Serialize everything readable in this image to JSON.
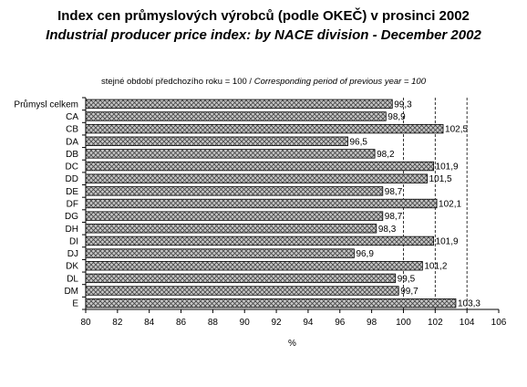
{
  "header": {
    "title_cz": "Index cen průmyslových výrobců (podle OKEČ) v prosinci 2002",
    "title_en": "Industrial producer price index: by NACE division - December 2002"
  },
  "note": {
    "base_cz": "stejné období předchozího roku = 100 / ",
    "base_en": "Corresponding period of previous year = 100"
  },
  "chart_data": {
    "type": "bar",
    "orientation": "horizontal",
    "categories": [
      "Průmysl celkem",
      "CA",
      "CB",
      "DA",
      "DB",
      "DC",
      "DD",
      "DE",
      "DF",
      "DG",
      "DH",
      "DI",
      "DJ",
      "DK",
      "DL",
      "DM",
      "E"
    ],
    "values": [
      99.3,
      98.9,
      102.5,
      96.5,
      98.2,
      101.9,
      101.5,
      98.7,
      102.1,
      98.7,
      98.3,
      101.9,
      96.9,
      101.2,
      99.5,
      99.7,
      103.3
    ],
    "value_labels": [
      "99,3",
      "98,9",
      "102,5",
      "96,5",
      "98,2",
      "101,9",
      "101,5",
      "98,7",
      "102,1",
      "98,7",
      "98,3",
      "101,9",
      "96,9",
      "101,2",
      "99,5",
      "99,7",
      "103,3"
    ],
    "xlim": [
      80,
      106
    ],
    "xticks": [
      "80",
      "82",
      "84",
      "86",
      "88",
      "90",
      "92",
      "94",
      "96",
      "98",
      "100",
      "102",
      "104",
      "106"
    ],
    "xlabel": "%",
    "reference_lines": [
      100,
      102,
      104
    ],
    "bar_fill": "#b8b8b8",
    "bar_stroke": "#000000"
  }
}
